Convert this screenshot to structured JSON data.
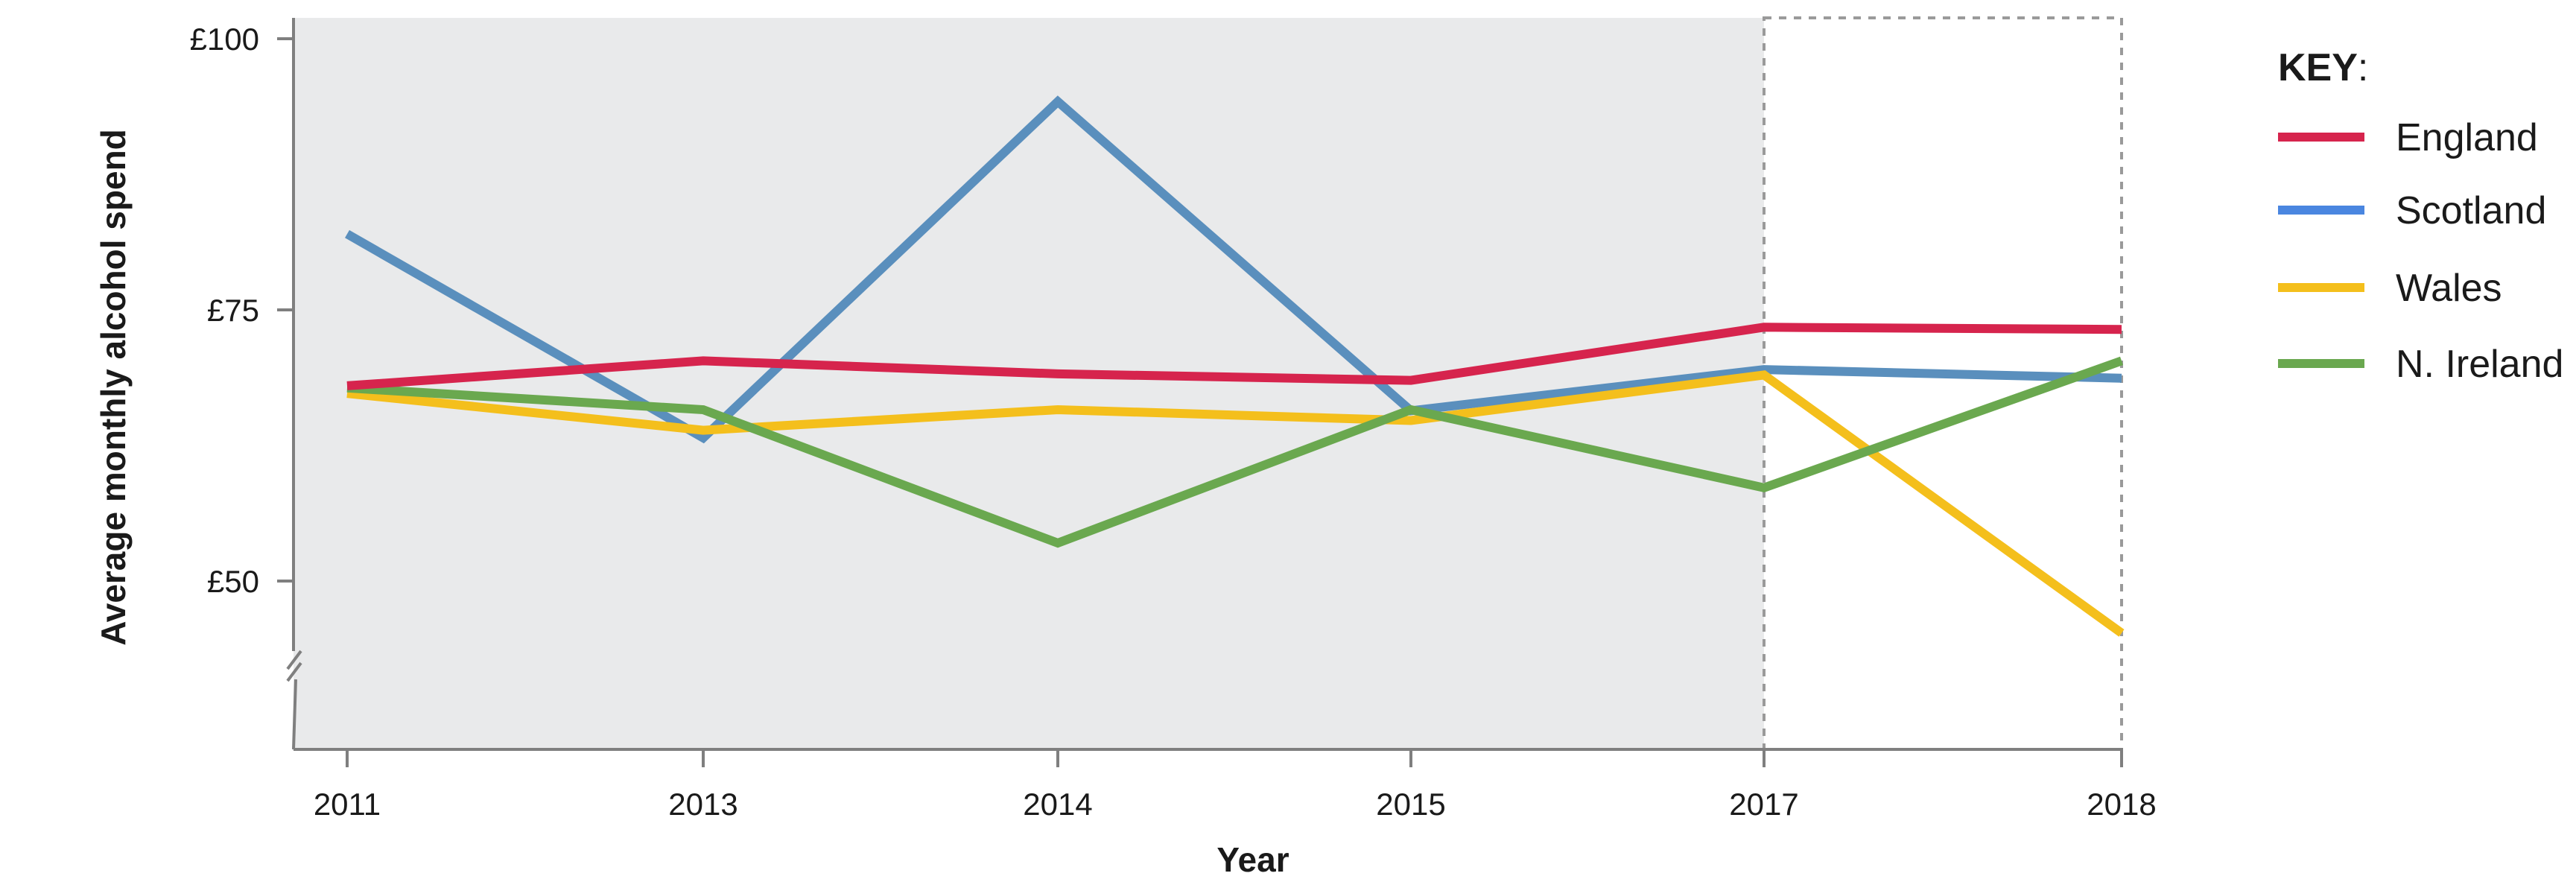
{
  "chart_data": {
    "type": "line",
    "title": "",
    "xlabel": "Year",
    "ylabel": "Average monthly alcohol spend",
    "categories": [
      "2011",
      "2013",
      "2014",
      "2015",
      "2017",
      "2018"
    ],
    "y_ticks": [
      {
        "value": 50,
        "label": "£50"
      },
      {
        "value": 75,
        "label": "£75"
      },
      {
        "value": 100,
        "label": "£100"
      }
    ],
    "ylim": [
      42,
      100
    ],
    "y_axis_break": true,
    "grid": false,
    "shaded_region": {
      "from": "2011",
      "to": "2017",
      "color": "#e9eaeb"
    },
    "dashed_box": {
      "from": "2017",
      "to": "2018"
    },
    "legend": {
      "title": "KEY",
      "title_suffix": ":",
      "position": "right"
    },
    "series": [
      {
        "name": "England",
        "color": "#d6244d",
        "values": [
          68,
          70.3,
          69.1,
          68.5,
          73.4,
          73.2
        ]
      },
      {
        "name": "Scotland",
        "color": "#5a8fbd",
        "legend_color": "#4a86e0",
        "values": [
          82,
          63.2,
          94.2,
          65.7,
          69.5,
          68.7
        ]
      },
      {
        "name": "Wales",
        "color": "#f4bf1c",
        "values": [
          67.3,
          63.9,
          65.8,
          64.8,
          69,
          45.2
        ]
      },
      {
        "name": "N. Ireland",
        "color": "#6aa84f",
        "values": [
          67.8,
          65.8,
          53.5,
          65.8,
          58.6,
          70.3
        ]
      }
    ]
  }
}
